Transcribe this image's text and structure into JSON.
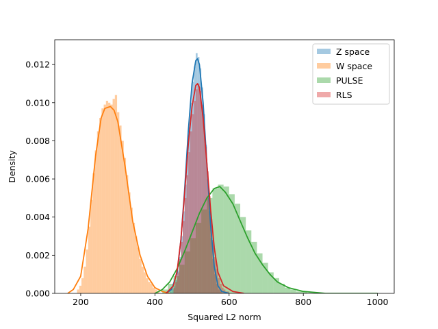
{
  "chart_data": {
    "type": "histogram-density",
    "xlabel": "Squared L2 norm",
    "ylabel": "Density",
    "xlim": [
      130,
      1045
    ],
    "ylim": [
      0,
      0.0133
    ],
    "xticks": [
      200,
      400,
      600,
      800,
      1000
    ],
    "yticks": [
      0.0,
      0.002,
      0.004,
      0.006,
      0.008,
      0.01,
      0.012
    ],
    "ytick_labels": [
      "0.000",
      "0.002",
      "0.004",
      "0.006",
      "0.008",
      "0.010",
      "0.012"
    ],
    "legend_position": "top-right",
    "series": [
      {
        "name": "Z space",
        "color": "#1f77b4",
        "bin_width": 5,
        "hist": [
          [
            440,
            0.0001
          ],
          [
            445,
            0.0002
          ],
          [
            450,
            0.0004
          ],
          [
            455,
            0.0007
          ],
          [
            460,
            0.0012
          ],
          [
            465,
            0.0019
          ],
          [
            470,
            0.003
          ],
          [
            475,
            0.0043
          ],
          [
            480,
            0.0057
          ],
          [
            485,
            0.0072
          ],
          [
            490,
            0.0087
          ],
          [
            495,
            0.01
          ],
          [
            500,
            0.0111
          ],
          [
            505,
            0.0119
          ],
          [
            510,
            0.0126
          ],
          [
            515,
            0.0124
          ],
          [
            520,
            0.0118
          ],
          [
            525,
            0.0108
          ],
          [
            530,
            0.0094
          ],
          [
            535,
            0.0078
          ],
          [
            540,
            0.006
          ],
          [
            545,
            0.0043
          ],
          [
            550,
            0.0029
          ],
          [
            555,
            0.0018
          ],
          [
            560,
            0.001
          ],
          [
            565,
            0.0005
          ],
          [
            570,
            0.0002
          ],
          [
            575,
            0.0001
          ]
        ],
        "kde": [
          [
            430,
            0.0
          ],
          [
            445,
            0.0002
          ],
          [
            460,
            0.0011
          ],
          [
            470,
            0.0028
          ],
          [
            480,
            0.0054
          ],
          [
            490,
            0.0085
          ],
          [
            500,
            0.011
          ],
          [
            510,
            0.0122
          ],
          [
            515,
            0.0123
          ],
          [
            520,
            0.012
          ],
          [
            530,
            0.01
          ],
          [
            540,
            0.0068
          ],
          [
            550,
            0.0036
          ],
          [
            560,
            0.0014
          ],
          [
            570,
            0.0004
          ],
          [
            580,
            0.0001
          ],
          [
            600,
            0.0
          ]
        ]
      },
      {
        "name": "W space",
        "color": "#ff7f0e",
        "bin_width": 6,
        "hist": [
          [
            190,
            0.0002
          ],
          [
            196,
            0.0004
          ],
          [
            202,
            0.0008
          ],
          [
            208,
            0.0014
          ],
          [
            214,
            0.0023
          ],
          [
            220,
            0.0035
          ],
          [
            226,
            0.0049
          ],
          [
            232,
            0.0063
          ],
          [
            238,
            0.0075
          ],
          [
            244,
            0.0085
          ],
          [
            250,
            0.0092
          ],
          [
            256,
            0.0097
          ],
          [
            262,
            0.0099
          ],
          [
            268,
            0.0101
          ],
          [
            274,
            0.01
          ],
          [
            280,
            0.0099
          ],
          [
            286,
            0.0102
          ],
          [
            292,
            0.0104
          ],
          [
            298,
            0.0095
          ],
          [
            304,
            0.0088
          ],
          [
            310,
            0.008
          ],
          [
            316,
            0.0071
          ],
          [
            322,
            0.0062
          ],
          [
            328,
            0.0053
          ],
          [
            334,
            0.0045
          ],
          [
            340,
            0.0037
          ],
          [
            346,
            0.003
          ],
          [
            352,
            0.0024
          ],
          [
            358,
            0.0018
          ],
          [
            364,
            0.0014
          ],
          [
            370,
            0.0011
          ],
          [
            376,
            0.0008
          ],
          [
            382,
            0.0006
          ],
          [
            388,
            0.0005
          ],
          [
            394,
            0.0003
          ],
          [
            400,
            0.0002
          ],
          [
            406,
            0.0001
          ]
        ],
        "kde": [
          [
            165,
            0.0
          ],
          [
            180,
            0.0002
          ],
          [
            200,
            0.0009
          ],
          [
            220,
            0.0034
          ],
          [
            240,
            0.0072
          ],
          [
            255,
            0.0092
          ],
          [
            265,
            0.0097
          ],
          [
            280,
            0.0098
          ],
          [
            290,
            0.0096
          ],
          [
            300,
            0.009
          ],
          [
            320,
            0.0066
          ],
          [
            340,
            0.0038
          ],
          [
            360,
            0.002
          ],
          [
            380,
            0.0009
          ],
          [
            400,
            0.0003
          ],
          [
            420,
            0.0001
          ],
          [
            440,
            0.0
          ]
        ]
      },
      {
        "name": "PULSE",
        "color": "#2ca02c",
        "bin_width": 15,
        "hist": [
          [
            420,
            0.0002
          ],
          [
            435,
            0.0005
          ],
          [
            450,
            0.0009
          ],
          [
            465,
            0.0015
          ],
          [
            480,
            0.0022
          ],
          [
            495,
            0.0029
          ],
          [
            510,
            0.0037
          ],
          [
            525,
            0.0044
          ],
          [
            540,
            0.005
          ],
          [
            555,
            0.0055
          ],
          [
            570,
            0.0057
          ],
          [
            585,
            0.0056
          ],
          [
            600,
            0.0052
          ],
          [
            615,
            0.0047
          ],
          [
            630,
            0.004
          ],
          [
            645,
            0.0033
          ],
          [
            660,
            0.0027
          ],
          [
            675,
            0.0021
          ],
          [
            690,
            0.0016
          ],
          [
            705,
            0.0011
          ],
          [
            720,
            0.0008
          ],
          [
            735,
            0.0005
          ],
          [
            750,
            0.0003
          ],
          [
            765,
            0.0002
          ],
          [
            780,
            0.0001
          ],
          [
            795,
            0.0001
          ]
        ],
        "kde": [
          [
            400,
            0.0
          ],
          [
            420,
            0.0002
          ],
          [
            440,
            0.0006
          ],
          [
            460,
            0.0013
          ],
          [
            480,
            0.0022
          ],
          [
            500,
            0.0032
          ],
          [
            520,
            0.0042
          ],
          [
            540,
            0.005
          ],
          [
            560,
            0.0055
          ],
          [
            575,
            0.0056
          ],
          [
            590,
            0.0053
          ],
          [
            610,
            0.0047
          ],
          [
            630,
            0.0038
          ],
          [
            650,
            0.0029
          ],
          [
            670,
            0.0021
          ],
          [
            690,
            0.0015
          ],
          [
            710,
            0.001
          ],
          [
            730,
            0.0006
          ],
          [
            760,
            0.0003
          ],
          [
            800,
            0.0001
          ],
          [
            860,
            0.0
          ],
          [
            1000,
            0.0
          ]
        ]
      },
      {
        "name": "RLS",
        "color": "#d62728",
        "bin_width": 5,
        "hist": [
          [
            450,
            0.0003
          ],
          [
            455,
            0.0006
          ],
          [
            460,
            0.0011
          ],
          [
            465,
            0.0018
          ],
          [
            470,
            0.0027
          ],
          [
            475,
            0.0038
          ],
          [
            480,
            0.005
          ],
          [
            485,
            0.0062
          ],
          [
            490,
            0.0074
          ],
          [
            495,
            0.0085
          ],
          [
            500,
            0.0094
          ],
          [
            505,
            0.0101
          ],
          [
            510,
            0.0107
          ],
          [
            515,
            0.011
          ],
          [
            520,
            0.0106
          ],
          [
            525,
            0.0099
          ],
          [
            530,
            0.0089
          ],
          [
            535,
            0.0077
          ],
          [
            540,
            0.0064
          ],
          [
            545,
            0.0051
          ],
          [
            550,
            0.0039
          ],
          [
            555,
            0.0028
          ],
          [
            560,
            0.0019
          ],
          [
            565,
            0.0013
          ],
          [
            570,
            0.0008
          ],
          [
            575,
            0.0005
          ],
          [
            580,
            0.0003
          ],
          [
            585,
            0.0002
          ],
          [
            590,
            0.0001
          ],
          [
            595,
            0.0001
          ]
        ],
        "kde": [
          [
            430,
            0.0
          ],
          [
            450,
            0.0004
          ],
          [
            460,
            0.0012
          ],
          [
            470,
            0.0028
          ],
          [
            480,
            0.0052
          ],
          [
            490,
            0.0078
          ],
          [
            500,
            0.0098
          ],
          [
            510,
            0.0109
          ],
          [
            515,
            0.011
          ],
          [
            520,
            0.0108
          ],
          [
            530,
            0.0092
          ],
          [
            540,
            0.0068
          ],
          [
            550,
            0.0044
          ],
          [
            560,
            0.0024
          ],
          [
            570,
            0.0011
          ],
          [
            585,
            0.0004
          ],
          [
            610,
            0.0001
          ],
          [
            640,
            0.0
          ]
        ]
      }
    ]
  }
}
